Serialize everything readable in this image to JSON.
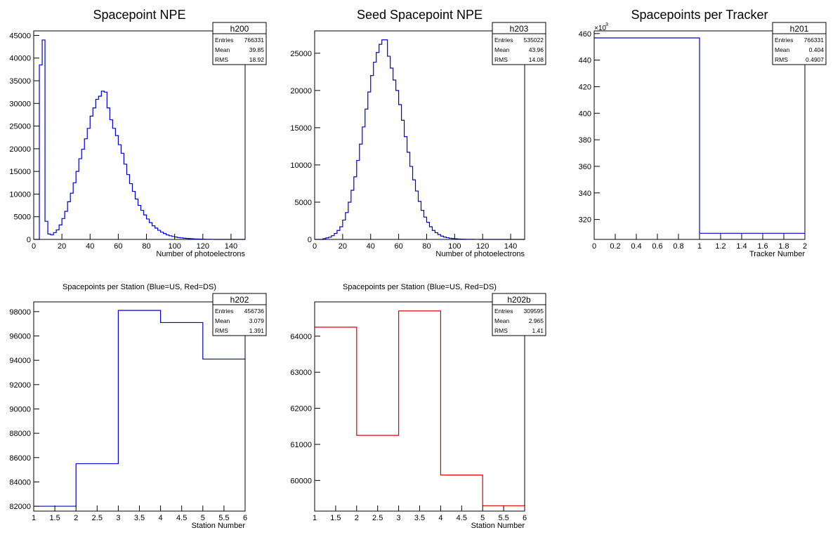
{
  "chart_data": [
    {
      "id": "h200",
      "type": "histogram",
      "title": "Spacepoint NPE",
      "xlabel": "Number of photoelectrons",
      "ylabel": "",
      "xlim": [
        0,
        150
      ],
      "ylim": [
        0,
        46000
      ],
      "xticks": [
        "0",
        "20",
        "40",
        "60",
        "80",
        "100",
        "120",
        "140"
      ],
      "yticks": [
        "0",
        "5000",
        "10000",
        "15000",
        "20000",
        "25000",
        "30000",
        "35000",
        "40000",
        "45000"
      ],
      "bin_width": 2,
      "x_start": 0,
      "values": [
        0,
        0,
        38500,
        44000,
        4000,
        1200,
        1000,
        1500,
        2100,
        3200,
        4600,
        6200,
        8300,
        10200,
        12500,
        15000,
        17800,
        19900,
        22200,
        24500,
        27200,
        29000,
        30900,
        31600,
        32700,
        32500,
        29000,
        26400,
        24500,
        22900,
        20900,
        19000,
        16600,
        14300,
        12300,
        10600,
        8900,
        7500,
        6400,
        5400,
        4500,
        3700,
        3000,
        2500,
        2000,
        1600,
        1300,
        1000,
        800,
        650,
        520,
        420,
        340,
        270,
        210,
        170,
        130,
        100,
        80,
        60,
        40,
        30,
        20,
        10,
        5,
        0,
        0,
        0,
        0,
        0,
        0,
        0,
        0,
        0,
        0
      ],
      "color": "#0000cc",
      "stats": {
        "name": "h200",
        "entries": "766331",
        "mean": "39.85",
        "rms": "18.92"
      }
    },
    {
      "id": "h203",
      "type": "histogram",
      "title": "Seed Spacepoint NPE",
      "xlabel": "Number of photoelectrons",
      "ylabel": "",
      "xlim": [
        0,
        150
      ],
      "ylim": [
        0,
        28000
      ],
      "xticks": [
        "0",
        "20",
        "40",
        "60",
        "80",
        "100",
        "120",
        "140"
      ],
      "yticks": [
        "0",
        "5000",
        "10000",
        "15000",
        "20000",
        "25000"
      ],
      "bin_width": 2,
      "x_start": 0,
      "values": [
        0,
        0,
        0,
        100,
        200,
        300,
        500,
        800,
        1200,
        1700,
        2600,
        3600,
        5000,
        6600,
        8400,
        10600,
        12800,
        15100,
        17500,
        19800,
        22000,
        23800,
        25100,
        26200,
        26800,
        26800,
        24600,
        23000,
        21400,
        20000,
        18100,
        16000,
        13800,
        11700,
        9800,
        8000,
        6500,
        5100,
        3900,
        3000,
        2300,
        1700,
        1200,
        900,
        650,
        450,
        320,
        230,
        160,
        110,
        80,
        55,
        40,
        28,
        20,
        14,
        10,
        6,
        4,
        2,
        1,
        0,
        0,
        0,
        0,
        0,
        0,
        0,
        0,
        0,
        0,
        0,
        0,
        0,
        0
      ],
      "color": "#0000cc",
      "stats": {
        "name": "h203",
        "entries": "535022",
        "mean": "43.96",
        "rms": "14.08"
      }
    },
    {
      "id": "h201",
      "type": "histogram",
      "title": "Spacepoints per Tracker",
      "xlabel": "Tracker Number",
      "ylabel": "",
      "xlim": [
        0,
        2
      ],
      "ylim": [
        305,
        462
      ],
      "y_multiplier": "×10",
      "y_exponent": "3",
      "xticks": [
        "0",
        "0.2",
        "0.4",
        "0.6",
        "0.8",
        "1",
        "1.2",
        "1.4",
        "1.6",
        "1.8",
        "2"
      ],
      "yticks": [
        "320",
        "340",
        "360",
        "380",
        "400",
        "420",
        "440",
        "460"
      ],
      "bin_edges": [
        0,
        1,
        2
      ],
      "values": [
        456.7,
        309.6
      ],
      "color": "#0000cc",
      "stats": {
        "name": "h201",
        "entries": "766331",
        "mean": "0.404",
        "rms": "0.4907"
      }
    },
    {
      "id": "h202",
      "type": "histogram",
      "title": "Spacepoints per Station (Blue=US, Red=DS)",
      "xlabel": "Station Number",
      "ylabel": "",
      "xlim": [
        1,
        6
      ],
      "ylim": [
        81600,
        98800
      ],
      "xticks": [
        "1",
        "1.5",
        "2",
        "2.5",
        "3",
        "3.5",
        "4",
        "4.5",
        "5",
        "5.5",
        "6"
      ],
      "yticks": [
        "82000",
        "84000",
        "86000",
        "88000",
        "90000",
        "92000",
        "94000",
        "96000",
        "98000"
      ],
      "bin_edges": [
        1,
        2,
        3,
        4,
        5,
        6
      ],
      "values": [
        82000,
        85500,
        98100,
        97100,
        94100
      ],
      "color": "#0000cc",
      "stats": {
        "name": "h202",
        "entries": "456736",
        "mean": "3.079",
        "rms": "1.391"
      }
    },
    {
      "id": "h202b",
      "type": "histogram",
      "title": "Spacepoints per Station (Blue=US, Red=DS)",
      "xlabel": "Station Number",
      "ylabel": "",
      "xlim": [
        1,
        6
      ],
      "ylim": [
        59150,
        64950
      ],
      "xticks": [
        "1",
        "1.5",
        "2",
        "2.5",
        "3",
        "3.5",
        "4",
        "4.5",
        "5",
        "5.5",
        "6"
      ],
      "yticks": [
        "60000",
        "61000",
        "62000",
        "63000",
        "64000"
      ],
      "bin_edges": [
        1,
        2,
        3,
        4,
        5,
        6
      ],
      "values": [
        64250,
        61250,
        64700,
        60150,
        59300
      ],
      "color": "#dd0000",
      "stats": {
        "name": "h202b",
        "entries": "309595",
        "mean": "2.965",
        "rms": "1.41"
      }
    }
  ],
  "stats_labels": {
    "entries": "Entries",
    "mean": "Mean",
    "rms": "RMS"
  }
}
